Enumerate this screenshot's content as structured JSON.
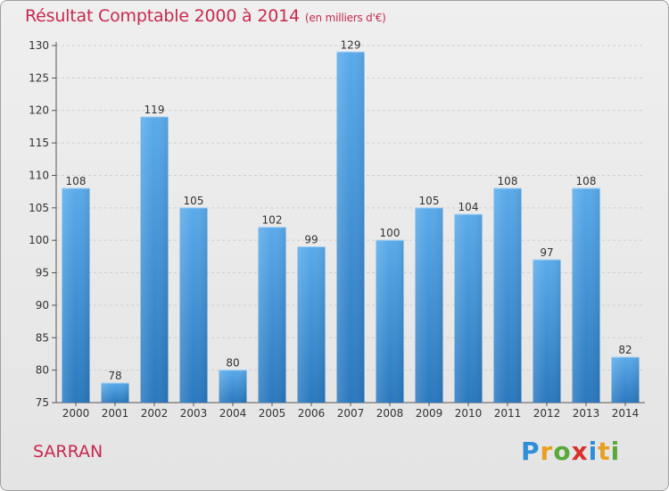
{
  "header": {
    "title": "Résultat Comptable 2000 à 2014",
    "subtitle": "(en milliers d'€)"
  },
  "footer": {
    "place": "SARRAN",
    "logo_text": "Proxiti",
    "logo_letters": [
      {
        "ch": "P",
        "color": "#2e8fd8"
      },
      {
        "ch": "r",
        "color": "#e8a020"
      },
      {
        "ch": "o",
        "color": "#58a83a"
      },
      {
        "ch": "x",
        "color": "#d8322e"
      },
      {
        "ch": "i",
        "color": "#2e8fd8"
      },
      {
        "ch": "t",
        "color": "#e8a020"
      },
      {
        "ch": "i",
        "color": "#58a83a"
      }
    ]
  },
  "colors": {
    "title": "#c8294e",
    "bar_top": "#5aaaea",
    "bar_bottom": "#2a78be"
  },
  "chart_data": {
    "type": "bar",
    "title": "Résultat Comptable 2000 à 2014",
    "subtitle": "(en milliers d'€)",
    "categories": [
      "2000",
      "2001",
      "2002",
      "2003",
      "2004",
      "2005",
      "2006",
      "2007",
      "2008",
      "2009",
      "2010",
      "2011",
      "2012",
      "2013",
      "2014"
    ],
    "values": [
      108,
      78,
      119,
      105,
      80,
      102,
      99,
      129,
      100,
      105,
      104,
      108,
      97,
      108,
      82
    ],
    "ylim": [
      75,
      130
    ],
    "yticks": [
      75,
      80,
      85,
      90,
      95,
      100,
      105,
      110,
      115,
      120,
      125,
      130
    ],
    "grid": true,
    "legend": "none",
    "xlabel": "",
    "ylabel": ""
  }
}
